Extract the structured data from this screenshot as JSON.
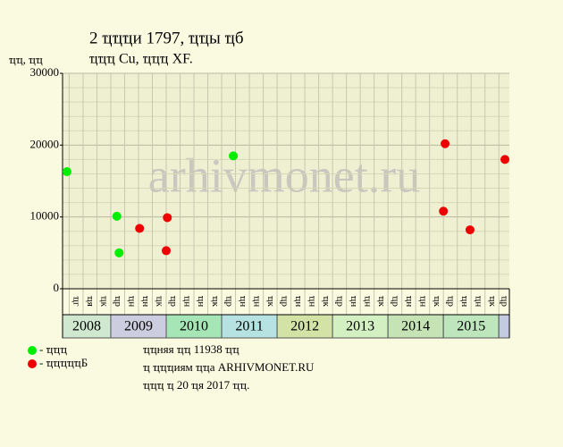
{
  "chart_data": {
    "type": "scatter",
    "title": "2 ҵҵҵи 1797, ҵҵы ҵб",
    "subtitle": "ҵҵҵ Cu, ҵҵҵ XF.",
    "y_label": "ҵҵ, ҵҵ",
    "watermark": "arhivmonet.ru",
    "notes": [
      "ҵҵняя ҵҵ 11938 ҵҵ",
      "ҵ ҵҵҵиям ҵҵа ARHIVMONET.RU",
      "ҵҵҵ ҵ 20 ҵя 2017 ҵҵ."
    ],
    "xlim": [
      2008.13,
      2016.19
    ],
    "ylim": [
      0,
      30000
    ],
    "yticks": [
      0,
      10000,
      20000,
      30000
    ],
    "minor_yticks": [
      2000,
      4000,
      6000,
      8000,
      12000,
      14000,
      16000,
      18000,
      22000,
      24000,
      26000,
      28000
    ],
    "grid": true,
    "xticks": [
      {
        "value": 2008,
        "label": "2008"
      },
      {
        "value": 2009,
        "label": "2009"
      },
      {
        "value": 2010,
        "label": "2010"
      },
      {
        "value": 2011,
        "label": "2011"
      },
      {
        "value": 2012,
        "label": "2012"
      },
      {
        "value": 2013,
        "label": "2013"
      },
      {
        "value": 2014,
        "label": "2014"
      },
      {
        "value": 2015,
        "label": "2015"
      },
      {
        "value": 2016,
        "label": null
      }
    ],
    "band_colors": [
      "#cfe8cf",
      "#cdcde0",
      "#a6e6b6",
      "#b6e2e2",
      "#d3e3a6",
      "#d3f0c3",
      "#c6e3b6",
      "#bde6bd",
      "#c3cbe0"
    ],
    "quarter_columns": [
      {
        "value": 2008.25,
        "label": "ҵг"
      },
      {
        "value": 2008.5,
        "label": "ҵя"
      },
      {
        "value": 2008.75,
        "label": "ҵк"
      },
      {
        "value": 2009.0,
        "label": "ҵр"
      },
      {
        "value": 2009.25,
        "label": "ҵн"
      },
      {
        "value": 2009.5,
        "label": "ҵн"
      },
      {
        "value": 2009.75,
        "label": "ҵк"
      },
      {
        "value": 2010.0,
        "label": "ҵр"
      },
      {
        "value": 2010.25,
        "label": "ҵн"
      },
      {
        "value": 2010.5,
        "label": "ҵн"
      },
      {
        "value": 2010.75,
        "label": "ҵк"
      },
      {
        "value": 2011.0,
        "label": "ҵр"
      },
      {
        "value": 2011.25,
        "label": "ҵн"
      },
      {
        "value": 2011.5,
        "label": "ҵн"
      },
      {
        "value": 2011.75,
        "label": "ҵк"
      },
      {
        "value": 2012.0,
        "label": "ҵр"
      },
      {
        "value": 2012.25,
        "label": "ҵн"
      },
      {
        "value": 2012.5,
        "label": "ҵн"
      },
      {
        "value": 2012.75,
        "label": "ҵк"
      },
      {
        "value": 2013.0,
        "label": "ҵр"
      },
      {
        "value": 2013.25,
        "label": "ҵн"
      },
      {
        "value": 2013.5,
        "label": "ҵн"
      },
      {
        "value": 2013.75,
        "label": "ҵк"
      },
      {
        "value": 2014.0,
        "label": "ҵр"
      },
      {
        "value": 2014.25,
        "label": "ҵн"
      },
      {
        "value": 2014.5,
        "label": "ҵн"
      },
      {
        "value": 2014.75,
        "label": "ҵк"
      },
      {
        "value": 2015.0,
        "label": "ҵр"
      },
      {
        "value": 2015.25,
        "label": "ҵн"
      },
      {
        "value": 2015.5,
        "label": "ҵн"
      },
      {
        "value": 2015.75,
        "label": "ҵк"
      },
      {
        "value": 2016.0,
        "label": "ҵр"
      }
    ],
    "series": [
      {
        "name": "- ҵҵҵ",
        "color": "#00ee00",
        "x": [
          2008.21,
          2009.11,
          2009.15,
          2011.21
        ],
        "values": [
          16300,
          10100,
          5000,
          18500
        ]
      },
      {
        "name": "- ҵҵҵҵҵБ",
        "color": "#ee0000",
        "x": [
          2009.52,
          2010.02,
          2010.0,
          2015.0,
          2015.03,
          2015.48,
          2016.11
        ],
        "values": [
          8400,
          9900,
          5300,
          10800,
          20200,
          8200,
          18000
        ]
      }
    ]
  }
}
